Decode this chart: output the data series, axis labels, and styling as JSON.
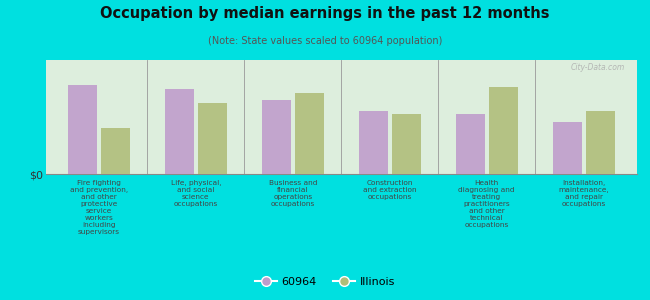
{
  "title": "Occupation by median earnings in the past 12 months",
  "subtitle": "(Note: State values scaled to 60964 population)",
  "background_color": "#00e0e0",
  "plot_bg_top": "#d4ede8",
  "plot_bg_bottom": "#ddeedd",
  "categories": [
    "Fire fighting\nand prevention,\nand other\nprotective\nservice\nworkers\nincluding\nsupervisors",
    "Life, physical,\nand social\nscience\noccupations",
    "Business and\nfinancial\noperations\noccupations",
    "Construction\nand extraction\noccupations",
    "Health\ndiagnosing and\ntreating\npractitioners\nand other\ntechnical\noccupations",
    "Installation,\nmaintenance,\nand repair\noccupations"
  ],
  "values_60964": [
    0.82,
    0.78,
    0.68,
    0.58,
    0.55,
    0.48
  ],
  "values_illinois": [
    0.42,
    0.65,
    0.75,
    0.55,
    0.8,
    0.58
  ],
  "color_60964": "#bf9dcc",
  "color_illinois": "#b0be7a",
  "ylabel": "$0",
  "legend_labels": [
    "60964",
    "Illinois"
  ],
  "watermark": "City-Data.com"
}
